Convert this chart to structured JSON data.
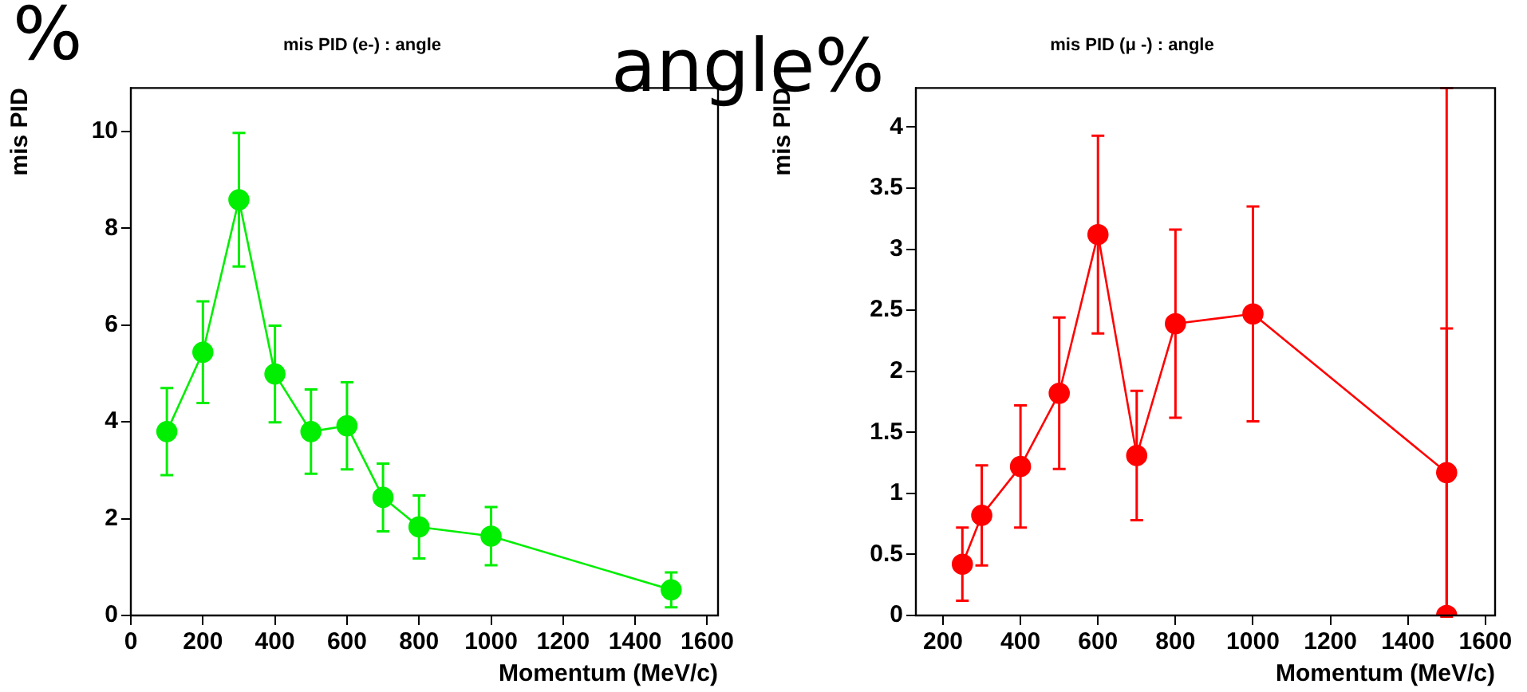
{
  "chart_data": [
    {
      "type": "line",
      "title": "mis PID (e-) : angle",
      "xlabel": "Momentum (MeV/c)",
      "ylabel": "mis PID",
      "x": [
        100,
        200,
        300,
        400,
        500,
        600,
        700,
        800,
        1000,
        1500
      ],
      "series": [
        {
          "color": "#00ee00",
          "values": [
            3.8,
            5.44,
            8.59,
            4.99,
            3.8,
            3.92,
            2.44,
            1.83,
            1.64,
            0.53
          ],
          "errors": [
            0.9,
            1.05,
            1.38,
            1.0,
            0.87,
            0.9,
            0.7,
            0.65,
            0.6,
            0.36
          ]
        }
      ],
      "xlim": [
        0,
        1630
      ],
      "xticks": [
        0,
        200,
        400,
        600,
        800,
        1000,
        1200,
        1400,
        1600
      ],
      "ylim": [
        0,
        10.9
      ],
      "yticks": [
        0,
        2,
        4,
        6,
        8,
        10
      ],
      "grid": false,
      "legend": false,
      "marker": "circle",
      "line_style": "solid",
      "annotations": [
        "%"
      ]
    },
    {
      "type": "line",
      "title": "mis PID (μ -) : angle",
      "xlabel": "Momentum (MeV/c)",
      "ylabel": "mis PID",
      "x": [
        250,
        300,
        400,
        500,
        600,
        700,
        800,
        1000,
        1500,
        1500
      ],
      "series": [
        {
          "color": "#ff0000",
          "values": [
            0.42,
            0.82,
            1.22,
            1.82,
            3.12,
            1.31,
            2.39,
            2.47,
            1.17,
            0
          ],
          "errors": [
            0.3,
            0.41,
            0.5,
            0.62,
            0.81,
            0.53,
            0.77,
            0.88,
            1.18,
            [
              0,
              4.32
            ]
          ]
        }
      ],
      "xlim": [
        130,
        1625
      ],
      "xticks": [
        200,
        400,
        600,
        800,
        1000,
        1200,
        1400,
        1600
      ],
      "ylim": [
        0,
        4.32
      ],
      "yticks": [
        0,
        0.5,
        1,
        1.5,
        2,
        2.5,
        3,
        3.5,
        4
      ],
      "grid": false,
      "legend": false,
      "marker": "circle",
      "line_style": "solid",
      "annotations": [
        "angle%"
      ]
    }
  ]
}
